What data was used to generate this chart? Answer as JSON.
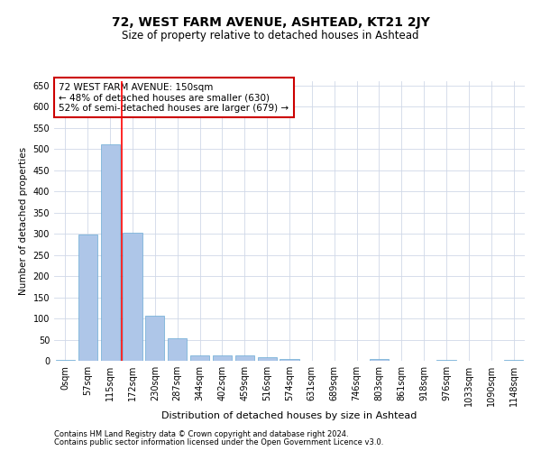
{
  "title": "72, WEST FARM AVENUE, ASHTEAD, KT21 2JY",
  "subtitle": "Size of property relative to detached houses in Ashtead",
  "xlabel": "Distribution of detached houses by size in Ashtead",
  "ylabel": "Number of detached properties",
  "categories": [
    "0sqm",
    "57sqm",
    "115sqm",
    "172sqm",
    "230sqm",
    "287sqm",
    "344sqm",
    "402sqm",
    "459sqm",
    "516sqm",
    "574sqm",
    "631sqm",
    "689sqm",
    "746sqm",
    "803sqm",
    "861sqm",
    "918sqm",
    "976sqm",
    "1033sqm",
    "1090sqm",
    "1148sqm"
  ],
  "values": [
    3,
    298,
    511,
    302,
    106,
    53,
    12,
    13,
    12,
    8,
    5,
    0,
    1,
    0,
    4,
    0,
    0,
    3,
    0,
    0,
    3
  ],
  "bar_color": "#aec6e8",
  "bar_edge_color": "#6aaad4",
  "red_line_x": 2.5,
  "annotation_text": "72 WEST FARM AVENUE: 150sqm\n← 48% of detached houses are smaller (630)\n52% of semi-detached houses are larger (679) →",
  "annotation_box_color": "#ffffff",
  "annotation_box_edge": "#cc0000",
  "ylim": [
    0,
    660
  ],
  "yticks": [
    0,
    50,
    100,
    150,
    200,
    250,
    300,
    350,
    400,
    450,
    500,
    550,
    600,
    650
  ],
  "footer1": "Contains HM Land Registry data © Crown copyright and database right 2024.",
  "footer2": "Contains public sector information licensed under the Open Government Licence v3.0.",
  "background_color": "#ffffff",
  "grid_color": "#d0d8e8",
  "title_fontsize": 10,
  "subtitle_fontsize": 8.5,
  "ylabel_fontsize": 7.5,
  "xlabel_fontsize": 8,
  "tick_fontsize": 7,
  "annotation_fontsize": 7.5,
  "footer_fontsize": 6
}
